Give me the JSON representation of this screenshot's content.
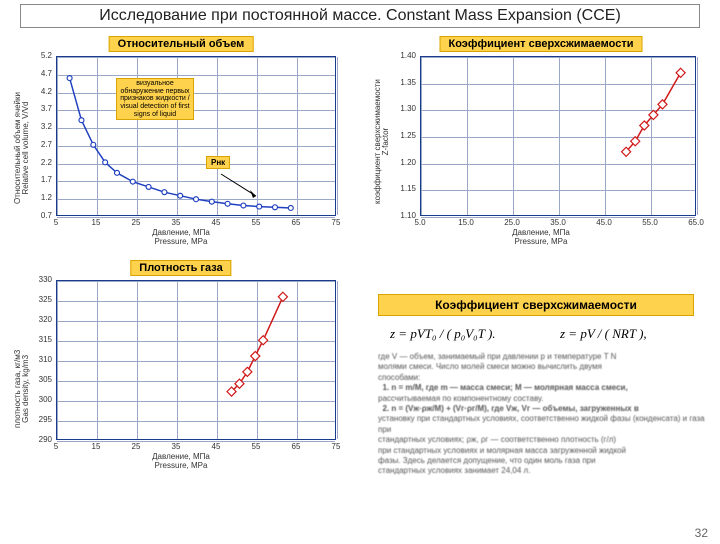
{
  "slide": {
    "title": "Исследование при постоянной массе. Constant Mass Expansion (CCE)",
    "page_number": "32"
  },
  "palette": {
    "axis_color": "#1a3a8a",
    "grid_color": "#9aa7c7",
    "gold_fill": "#ffd24d",
    "gold_border": "#d9a400",
    "series_blue": "#2040c0",
    "series_red": "#d01818",
    "background": "#ffffff"
  },
  "charts": {
    "rel_vol": {
      "type": "line",
      "title": "Относительный объем",
      "y_axis": {
        "label_ru": "Относительный объем ячейки",
        "label_en": "Relative cell volume, V/Vd",
        "min": 0.7,
        "max": 5.2,
        "step": 0.5,
        "ticks": [
          0.7,
          1.2,
          1.7,
          2.2,
          2.7,
          3.2,
          3.7,
          4.2,
          4.7,
          5.2
        ]
      },
      "x_axis": {
        "label_ru": "Давление, МПа",
        "label_en": "Pressure, MPa",
        "min": 5,
        "max": 75,
        "step": 10,
        "ticks": [
          5,
          15,
          25,
          35,
          45,
          55,
          65,
          75
        ]
      },
      "series": {
        "color": "#2040c0",
        "marker": "circle",
        "marker_size": 5,
        "line_width": 1.5,
        "x": [
          8,
          11,
          14,
          17,
          20,
          24,
          28,
          32,
          36,
          40,
          44,
          48,
          52,
          56,
          60,
          64
        ],
        "y": [
          4.6,
          3.4,
          2.7,
          2.2,
          1.9,
          1.65,
          1.5,
          1.35,
          1.25,
          1.15,
          1.08,
          1.02,
          0.97,
          0.94,
          0.92,
          0.9
        ]
      },
      "annot": {
        "text": "визуальное обнаружение первых признаков жидкости / visual detection of first signs of liquid",
        "small_label": "Pнк"
      }
    },
    "zfactor": {
      "type": "line",
      "title": "Коэффициент сверхсжимаемости",
      "y_axis": {
        "label_ru": "коэффициент сверхсжимаемости",
        "label_en": "Z-factor",
        "min": 1.1,
        "max": 1.4,
        "step": 0.05,
        "ticks": [
          1.1,
          1.15,
          1.2,
          1.25,
          1.3,
          1.35,
          1.4
        ]
      },
      "x_axis": {
        "label_ru": "Давление, МПа",
        "label_en": "Pressure, MPa",
        "min": 5.0,
        "max": 65.0,
        "step": 10.0,
        "ticks": [
          5.0,
          15.0,
          25.0,
          35.0,
          45.0,
          55.0,
          65.0
        ]
      },
      "series": {
        "color": "#d01818",
        "marker": "diamond",
        "marker_size": 6,
        "line_width": 1.5,
        "x": [
          50,
          52,
          54,
          56,
          58,
          62
        ],
        "y": [
          1.22,
          1.24,
          1.27,
          1.29,
          1.31,
          1.37
        ]
      }
    },
    "density": {
      "type": "line",
      "title": "Плотность газа",
      "y_axis": {
        "label_ru": "плотность газа, кг/м3",
        "label_en": "Gas density, kg/m3",
        "min": 290,
        "max": 330,
        "step": 5,
        "ticks": [
          290,
          295,
          300,
          305,
          310,
          315,
          320,
          325,
          330
        ]
      },
      "x_axis": {
        "label_ru": "Давление, МПа",
        "label_en": "Pressure, MPa",
        "min": 5,
        "max": 75,
        "step": 10,
        "ticks": [
          5,
          15,
          25,
          35,
          45,
          55,
          65,
          75
        ]
      },
      "series": {
        "color": "#d01818",
        "marker": "diamond",
        "marker_size": 6,
        "line_width": 1.5,
        "x": [
          49,
          51,
          53,
          55,
          57,
          62
        ],
        "y": [
          302,
          304,
          307,
          311,
          315,
          326
        ]
      }
    }
  },
  "gold_bar": {
    "text": "Коэффициент сверхсжимаемости"
  },
  "formulas": {
    "left": "z = pVT₀ / ( p₀V₀T ).",
    "right": "z = pV / ( NRT ),"
  },
  "description": {
    "l1": "где V — объем, занимаемый при давлении p и температуре T N",
    "l2": "молями смеси. Число молей смеси можно вычислить двумя",
    "l3": "способами:",
    "l4": "1.  n = m/M, где m — масса смеси; M — молярная масса смеси,",
    "l5": "рассчитываемая по компонентному составу.",
    "l6": "2.  n = (Vж·ρж/M) + (Vг·ρг/M), где Vж, Vг — объемы, загруженных в",
    "l7": "установку при стандартных условиях, соответственно жидкой фазы (конденсата) и газа при",
    "l8": "стандартных условиях; ρж, ρг — соответственно плотность (г/л)",
    "l9": "при стандартных условиях и молярная масса загруженной жидкой",
    "l10": "фазы. Здесь делается допущение, что один моль газа при",
    "l11": "стандартных условиях занимает 24,04 л."
  }
}
